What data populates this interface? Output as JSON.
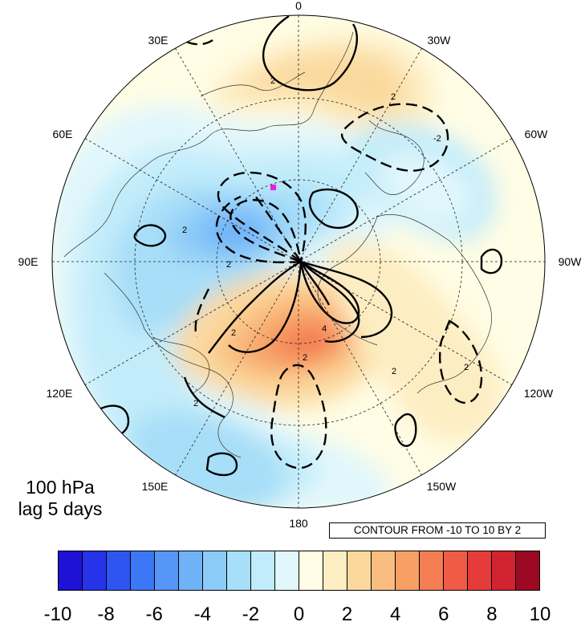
{
  "map": {
    "projection": "north-polar-stereographic",
    "field": "shaded anomaly with black contours (solid positive, dashed negative)",
    "longitude_labels": [
      {
        "text": "0",
        "lon": 0
      },
      {
        "text": "30W",
        "lon": -30
      },
      {
        "text": "60W",
        "lon": -60
      },
      {
        "text": "90W",
        "lon": -90
      },
      {
        "text": "120W",
        "lon": -120
      },
      {
        "text": "150W",
        "lon": -150
      },
      {
        "text": "180",
        "lon": 180
      },
      {
        "text": "150E",
        "lon": 150
      },
      {
        "text": "120E",
        "lon": 120
      },
      {
        "text": "90E",
        "lon": 90
      },
      {
        "text": "60E",
        "lon": 60
      },
      {
        "text": "30E",
        "lon": 30
      }
    ],
    "contour_line_labels": [
      "2",
      "2",
      "-2",
      "2",
      "4",
      "2",
      "2",
      "2",
      "2",
      "2",
      "2"
    ],
    "marker_color": "#e61ee6"
  },
  "annotations": {
    "level": "100 hPa",
    "lag": "lag 5 days",
    "contour_note": "CONTOUR FROM -10 TO 10 BY 2"
  },
  "colorbar": {
    "colors": [
      "#1f12d6",
      "#2633e8",
      "#2f55f0",
      "#3c78f5",
      "#5696f7",
      "#6fb2f8",
      "#8ccaf8",
      "#a7def8",
      "#c2ecfa",
      "#e1f7fc",
      "#fffde5",
      "#fdedc2",
      "#fbd99e",
      "#f9bd80",
      "#f7a066",
      "#f47e52",
      "#ef5b46",
      "#e53c3a",
      "#d22330",
      "#9b0a22"
    ],
    "tick_labels": [
      "-10",
      "-8",
      "-6",
      "-4",
      "-2",
      "0",
      "2",
      "4",
      "6",
      "8",
      "10"
    ]
  }
}
